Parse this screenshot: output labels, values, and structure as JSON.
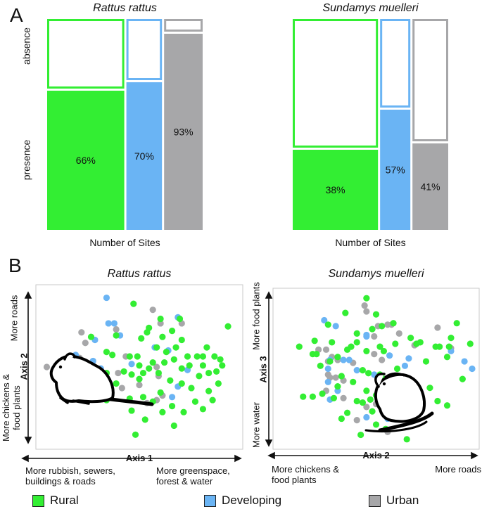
{
  "panels": {
    "a": "A",
    "b": "B"
  },
  "colors": {
    "rural": "#33ee33",
    "developing": "#6ab4f4",
    "urban": "#a7a7a9",
    "border": "#222222"
  },
  "panel_a": {
    "y_absence": "absence",
    "y_presence": "presence",
    "x_label": "Number of Sites"
  },
  "panel_b": {
    "rattus_axes": {
      "x_axis": "Axis 1",
      "y_axis": "Axis 2",
      "y_top": "More roads",
      "y_bottom": "More chickens & food plants",
      "x_left": "More rubbish, sewers, buildings & roads",
      "x_right": "More greenspace, forest & water"
    },
    "sundamys_axes": {
      "x_axis": "Axis 2",
      "y_axis": "Axis 3",
      "y_top": "More food plants",
      "y_bottom": "More water",
      "x_left": "More chickens & food plants",
      "x_right": "More roads"
    }
  },
  "legend": {
    "rural": "Rural",
    "developing": "Developing",
    "urban": "Urban"
  },
  "chart_data": [
    {
      "type": "mosaic",
      "panel": "A",
      "title": "Rattus rattus",
      "ylabel": "absence / presence",
      "xlabel": "Number of Sites",
      "categories": [
        "Rural",
        "Developing",
        "Urban"
      ],
      "relative_site_counts": [
        2.6,
        1.2,
        1.3
      ],
      "presence_percent": [
        66,
        70,
        93
      ],
      "labels": [
        "66%",
        "70%",
        "93%"
      ]
    },
    {
      "type": "mosaic",
      "panel": "A",
      "title": "Sundamys muelleri",
      "ylabel": "absence / presence",
      "xlabel": "Number of Sites",
      "categories": [
        "Rural",
        "Developing",
        "Urban"
      ],
      "relative_site_counts": [
        3.1,
        1.1,
        1.3
      ],
      "presence_percent": [
        38,
        57,
        41
      ],
      "labels": [
        "38%",
        "57%",
        "41%"
      ]
    },
    {
      "type": "scatter",
      "panel": "B",
      "title": "Rattus rattus",
      "xlabel": "Axis 1",
      "ylabel": "Axis 2",
      "xlim": [
        0,
        100
      ],
      "ylim": [
        0,
        100
      ],
      "series": [
        {
          "name": "Rural",
          "points": [
            [
              47,
              92
            ],
            [
              61,
              82
            ],
            [
              71,
              82
            ],
            [
              55,
              76
            ],
            [
              67,
              74
            ],
            [
              96,
              77
            ],
            [
              25,
              70
            ],
            [
              38,
              71
            ],
            [
              54,
              73
            ],
            [
              51,
              69
            ],
            [
              62,
              70
            ],
            [
              72,
              68
            ],
            [
              59,
              63
            ],
            [
              69,
              63
            ],
            [
              85,
              63
            ],
            [
              33,
              60
            ],
            [
              45,
              57
            ],
            [
              49,
              57
            ],
            [
              64,
              60
            ],
            [
              75,
              57
            ],
            [
              36,
              58
            ],
            [
              57,
              53
            ],
            [
              63,
              53
            ],
            [
              68,
              55
            ],
            [
              80,
              57
            ],
            [
              83,
              57
            ],
            [
              89,
              57
            ],
            [
              92,
              55
            ],
            [
              50,
              51
            ],
            [
              55,
              49
            ],
            [
              72,
              49
            ],
            [
              76,
              51
            ],
            [
              83,
              51
            ],
            [
              93,
              51
            ],
            [
              33,
              46
            ],
            [
              42,
              47
            ],
            [
              46,
              45
            ],
            [
              52,
              46
            ],
            [
              60,
              46
            ],
            [
              81,
              44
            ],
            [
              86,
              46
            ],
            [
              90,
              47
            ],
            [
              38,
              39
            ],
            [
              50,
              42
            ],
            [
              66,
              41
            ],
            [
              72,
              39
            ],
            [
              77,
              36
            ],
            [
              91,
              39
            ],
            [
              61,
              33
            ],
            [
              86,
              34
            ],
            [
              33,
              28
            ],
            [
              45,
              29
            ],
            [
              52,
              30
            ],
            [
              57,
              27
            ],
            [
              67,
              24
            ],
            [
              79,
              27
            ],
            [
              88,
              28
            ],
            [
              46,
              21
            ],
            [
              62,
              20
            ],
            [
              73,
              20
            ],
            [
              83,
              22
            ],
            [
              53,
              15
            ],
            [
              48,
              5
            ],
            [
              68,
              11
            ]
          ]
        },
        {
          "name": "Developing",
          "points": [
            [
              33,
              96
            ],
            [
              37,
              79
            ],
            [
              34,
              79
            ],
            [
              70,
              83
            ],
            [
              40,
              71
            ],
            [
              27,
              68
            ],
            [
              58,
              63
            ],
            [
              17,
              58
            ],
            [
              14,
              56
            ],
            [
              26,
              54
            ],
            [
              65,
              61
            ],
            [
              30,
              49
            ],
            [
              46,
              52
            ],
            [
              75,
              48
            ],
            [
              70,
              37
            ],
            [
              67,
              30
            ]
          ]
        },
        {
          "name": "Urban",
          "points": [
            [
              57,
              88
            ],
            [
              61,
              79
            ],
            [
              72,
              79
            ],
            [
              20,
              73
            ],
            [
              38,
              75
            ],
            [
              22,
              66
            ],
            [
              43,
              57
            ],
            [
              19,
              56
            ],
            [
              2,
              50
            ],
            [
              18,
              49
            ],
            [
              16,
              47
            ],
            [
              39,
              46
            ],
            [
              59,
              50
            ],
            [
              60,
              44
            ],
            [
              50,
              38
            ],
            [
              41,
              36
            ],
            [
              34,
              30
            ],
            [
              62,
              31
            ],
            [
              59,
              28
            ],
            [
              54,
              26
            ]
          ]
        }
      ]
    },
    {
      "type": "scatter",
      "panel": "B",
      "title": "Sundamys muelleri",
      "xlabel": "Axis 2",
      "ylabel": "Axis 3",
      "xlim": [
        0,
        100
      ],
      "ylim": [
        0,
        100
      ],
      "series": [
        {
          "name": "Rural",
          "points": [
            [
              45,
              98
            ],
            [
              34,
              88
            ],
            [
              50,
              87
            ],
            [
              25,
              80
            ],
            [
              59,
              81
            ],
            [
              92,
              81
            ],
            [
              53,
              79
            ],
            [
              48,
              77
            ],
            [
              40,
              74
            ],
            [
              68,
              71
            ],
            [
              89,
              71
            ],
            [
              18,
              69
            ],
            [
              27,
              68
            ],
            [
              40,
              68
            ],
            [
              71,
              67
            ],
            [
              73,
              68
            ],
            [
              10,
              65
            ],
            [
              37,
              65
            ],
            [
              52,
              65
            ],
            [
              60,
              67
            ],
            [
              81,
              65
            ],
            [
              83,
              65
            ],
            [
              88,
              65
            ],
            [
              99,
              67
            ],
            [
              35,
              63
            ],
            [
              45,
              62
            ],
            [
              54,
              62
            ],
            [
              17,
              60
            ],
            [
              19,
              60
            ],
            [
              30,
              58
            ],
            [
              26,
              55
            ],
            [
              76,
              55
            ],
            [
              87,
              58
            ],
            [
              21,
              52
            ],
            [
              43,
              49
            ],
            [
              46,
              47
            ],
            [
              52,
              46
            ],
            [
              53,
              44
            ],
            [
              61,
              50
            ],
            [
              32,
              45
            ],
            [
              95,
              43
            ],
            [
              38,
              41
            ],
            [
              30,
              38
            ],
            [
              78,
              37
            ],
            [
              45,
              35
            ],
            [
              22,
              33
            ],
            [
              50,
              32
            ],
            [
              12,
              31
            ],
            [
              17,
              31
            ],
            [
              28,
              30
            ],
            [
              47,
              29
            ],
            [
              40,
              28
            ],
            [
              55,
              27
            ],
            [
              62,
              26
            ],
            [
              66,
              30
            ],
            [
              43,
              27
            ],
            [
              74,
              28
            ],
            [
              82,
              28
            ],
            [
              87,
              25
            ],
            [
              48,
              21
            ],
            [
              35,
              20
            ],
            [
              60,
              18
            ],
            [
              32,
              16
            ],
            [
              50,
              12
            ],
            [
              55,
              9
            ],
            [
              42,
              5
            ],
            [
              66,
              2
            ]
          ]
        },
        {
          "name": "Developing",
          "points": [
            [
              23,
              83
            ],
            [
              29,
              79
            ],
            [
              45,
              73
            ],
            [
              45,
              72
            ],
            [
              89,
              62
            ],
            [
              57,
              59
            ],
            [
              26,
              56
            ],
            [
              33,
              56
            ],
            [
              36,
              56
            ],
            [
              25,
              50
            ],
            [
              40,
              49
            ],
            [
              67,
              57
            ],
            [
              65,
              52
            ],
            [
              100,
              50
            ],
            [
              96,
              55
            ],
            [
              49,
              46
            ],
            [
              25,
              41
            ],
            [
              30,
              35
            ],
            [
              26,
              29
            ],
            [
              54,
              30
            ],
            [
              62,
              27
            ],
            [
              45,
              17
            ],
            [
              56,
              16
            ]
          ]
        },
        {
          "name": "Urban",
          "points": [
            [
              44,
              93
            ],
            [
              45,
              89
            ],
            [
              51,
              79
            ],
            [
              56,
              80
            ],
            [
              58,
              80
            ],
            [
              62,
              74
            ],
            [
              82,
              78
            ],
            [
              49,
              72
            ],
            [
              70,
              66
            ],
            [
              89,
              64
            ],
            [
              20,
              63
            ],
            [
              24,
              63
            ],
            [
              49,
              60
            ],
            [
              30,
              56
            ],
            [
              25,
              55
            ],
            [
              27,
              58
            ],
            [
              38,
              54
            ],
            [
              53,
              56
            ],
            [
              25,
              46
            ],
            [
              26,
              44
            ],
            [
              29,
              44
            ],
            [
              33,
              42
            ],
            [
              24,
              35
            ],
            [
              52,
              35
            ],
            [
              33,
              30
            ],
            [
              45,
              24
            ],
            [
              50,
              26
            ],
            [
              40,
              15
            ],
            [
              56,
              7
            ]
          ]
        }
      ]
    }
  ]
}
